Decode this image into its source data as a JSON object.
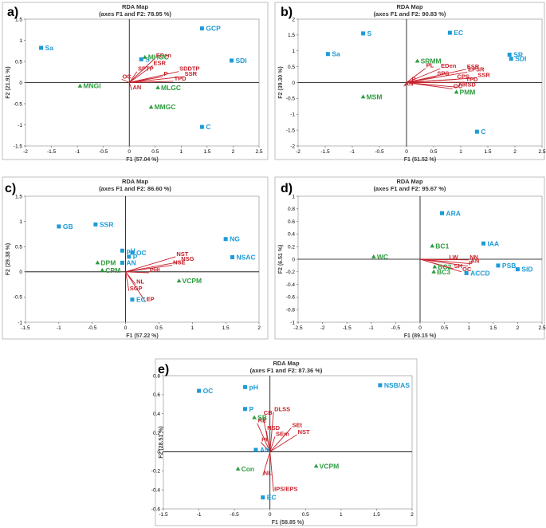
{
  "colors": {
    "site": "#1e9bd7",
    "treatment": "#2e9b3e",
    "variable": "#c8202a",
    "axis": "#000000",
    "frame": "#b0b0b0"
  },
  "chart_data": [
    {
      "panel": "a)",
      "type": "scatter",
      "title": "RDA Map",
      "subtitle": "(axes F1 and F2: 78.95 %)",
      "xlabel": "F1 (57.04 %)",
      "ylabel": "F2 (21.91 %)",
      "xlim": [
        -2,
        2.5
      ],
      "ylim": [
        -1.5,
        1.5
      ],
      "xticks": [
        -2,
        -1.5,
        -1,
        -0.5,
        0,
        0.5,
        1,
        1.5,
        2,
        2.5
      ],
      "yticks": [
        -1.5,
        -1,
        -0.5,
        0,
        0.5,
        1,
        1.5
      ],
      "sites": [
        {
          "label": "Sa",
          "x": -1.7,
          "y": 0.82
        },
        {
          "label": "GCP",
          "x": 1.4,
          "y": 1.28
        },
        {
          "label": "SDI",
          "x": 1.97,
          "y": 0.52
        },
        {
          "label": "C",
          "x": 1.4,
          "y": -1.05
        },
        {
          "label": "S",
          "x": 0.23,
          "y": 0.55
        }
      ],
      "treatments": [
        {
          "label": "MHGC",
          "x": 0.3,
          "y": 0.6
        },
        {
          "label": "MNGI",
          "x": -0.95,
          "y": -0.08
        },
        {
          "label": "MLGC",
          "x": 0.55,
          "y": -0.12
        },
        {
          "label": "MMGC",
          "x": 0.42,
          "y": -0.58
        }
      ],
      "vectors": [
        {
          "label": "EDen",
          "x": 0.5,
          "y": 0.58
        },
        {
          "label": "ESR",
          "x": 0.45,
          "y": 0.4
        },
        {
          "label": "SDDTP",
          "x": 0.95,
          "y": 0.26
        },
        {
          "label": "SPTP",
          "x": 0.15,
          "y": 0.26
        },
        {
          "label": "P",
          "x": 0.65,
          "y": 0.14
        },
        {
          "label": "SSR",
          "x": 1.05,
          "y": 0.14
        },
        {
          "label": "TPD",
          "x": 0.85,
          "y": 0.03
        },
        {
          "label": "OC",
          "x": -0.15,
          "y": 0.08
        },
        {
          "label": "AN",
          "x": 0.05,
          "y": -0.18
        }
      ]
    },
    {
      "panel": "b)",
      "type": "scatter",
      "title": "RDA Map",
      "subtitle": "(axes F1 and F2: 90.83 %)",
      "xlabel": "F1 (51.52 %)",
      "ylabel": "F2 (39.30 %)",
      "xlim": [
        -2,
        2.5
      ],
      "ylim": [
        -2,
        2
      ],
      "xticks": [
        -2,
        -1.5,
        -1,
        -0.5,
        0,
        0.5,
        1,
        1.5,
        2,
        2.5
      ],
      "yticks": [
        -2,
        -1.5,
        -1,
        -0.5,
        0,
        0.5,
        1,
        1.5,
        2
      ],
      "sites": [
        {
          "label": "S",
          "x": -0.8,
          "y": 1.55
        },
        {
          "label": "EC",
          "x": 0.8,
          "y": 1.57
        },
        {
          "label": "Sa",
          "x": -1.45,
          "y": 0.9
        },
        {
          "label": "SR",
          "x": 1.9,
          "y": 0.88
        },
        {
          "label": "SDI",
          "x": 1.93,
          "y": 0.75
        },
        {
          "label": "C",
          "x": 1.3,
          "y": -1.55
        }
      ],
      "treatments": [
        {
          "label": "SRMM",
          "x": 0.2,
          "y": 0.68
        },
        {
          "label": "MSM",
          "x": -0.8,
          "y": -0.45
        },
        {
          "label": "PMM",
          "x": 0.92,
          "y": -0.3
        }
      ],
      "vectors": [
        {
          "label": "PL",
          "x": 0.35,
          "y": 0.45
        },
        {
          "label": "EDen",
          "x": 0.62,
          "y": 0.44
        },
        {
          "label": "ESR",
          "x": 1.1,
          "y": 0.42
        },
        {
          "label": "SPS",
          "x": 0.55,
          "y": 0.2
        },
        {
          "label": "EPSR",
          "x": 1.12,
          "y": 0.33
        },
        {
          "label": "SSR",
          "x": 1.3,
          "y": 0.15
        },
        {
          "label": "CPS",
          "x": 0.92,
          "y": 0.1
        },
        {
          "label": "TPD",
          "x": 1.08,
          "y": 0.01
        },
        {
          "label": "P",
          "x": 0.08,
          "y": 0.02
        },
        {
          "label": "NRSD",
          "x": 0.95,
          "y": -0.15
        },
        {
          "label": "OC",
          "x": 0.85,
          "y": -0.2
        },
        {
          "label": "AN",
          "x": -0.05,
          "y": -0.12
        }
      ]
    },
    {
      "panel": "c)",
      "type": "scatter",
      "title": "RDA Map",
      "subtitle": "(axes F1 and F2: 86.60 %)",
      "xlabel": "F1 (57.22 %)",
      "ylabel": "F2 (29.38 %)",
      "xlim": [
        -1.5,
        2
      ],
      "ylim": [
        -1,
        1.5
      ],
      "xticks": [
        -1.5,
        -1,
        -0.5,
        0,
        0.5,
        1,
        1.5,
        2
      ],
      "yticks": [
        -1,
        -0.5,
        0,
        0.5,
        1,
        1.5
      ],
      "sites": [
        {
          "label": "GB",
          "x": -1.0,
          "y": 0.9
        },
        {
          "label": "SSR",
          "x": -0.45,
          "y": 0.94
        },
        {
          "label": "NG",
          "x": 1.5,
          "y": 0.65
        },
        {
          "label": "NSAC",
          "x": 1.6,
          "y": 0.29
        },
        {
          "label": "pH",
          "x": -0.05,
          "y": 0.42
        },
        {
          "label": "OC",
          "x": 0.1,
          "y": 0.38
        },
        {
          "label": "P",
          "x": 0.05,
          "y": 0.3
        },
        {
          "label": "AN",
          "x": -0.05,
          "y": 0.18
        },
        {
          "label": "EC",
          "x": 0.1,
          "y": -0.55
        }
      ],
      "treatments": [
        {
          "label": "DPM",
          "x": -0.42,
          "y": 0.18
        },
        {
          "label": "CPM",
          "x": -0.35,
          "y": 0.03
        },
        {
          "label": "VCPM",
          "x": 0.8,
          "y": -0.18
        }
      ],
      "vectors": [
        {
          "label": "NST",
          "x": 0.75,
          "y": 0.3
        },
        {
          "label": "NSG",
          "x": 0.82,
          "y": 0.2
        },
        {
          "label": "NSE",
          "x": 0.7,
          "y": 0.13
        },
        {
          "label": "PHt",
          "x": 0.35,
          "y": -0.02
        },
        {
          "label": "NL",
          "x": 0.15,
          "y": -0.25
        },
        {
          "label": "SGP",
          "x": 0.05,
          "y": -0.38
        },
        {
          "label": "EP",
          "x": 0.3,
          "y": -0.6
        }
      ]
    },
    {
      "panel": "d)",
      "type": "scatter",
      "title": "RDA Map",
      "subtitle": "(axes F1 and F2: 95.67 %)",
      "xlabel": "F1 (89.15 %)",
      "ylabel": "F2 (6.51 %)",
      "xlim": [
        -2.5,
        2.5
      ],
      "ylim": [
        -1,
        1
      ],
      "xticks": [
        -2.5,
        -2,
        -1.5,
        -1,
        -0.5,
        0,
        0.5,
        1,
        1.5,
        2,
        2.5
      ],
      "yticks": [
        -1,
        -0.8,
        -0.6,
        -0.4,
        -0.2,
        0,
        0.2,
        0.4,
        0.6,
        0.8,
        1
      ],
      "sites": [
        {
          "label": "ARA",
          "x": 0.45,
          "y": 0.73
        },
        {
          "label": "IAA",
          "x": 1.3,
          "y": 0.25
        },
        {
          "label": "PSB",
          "x": 1.6,
          "y": -0.1
        },
        {
          "label": "SID",
          "x": 2.0,
          "y": -0.16
        },
        {
          "label": "ACCD",
          "x": 0.95,
          "y": -0.22
        }
      ],
      "treatments": [
        {
          "label": "BC1",
          "x": 0.25,
          "y": 0.21
        },
        {
          "label": "WC",
          "x": -0.95,
          "y": 0.04
        },
        {
          "label": "BC2",
          "x": 0.3,
          "y": -0.12
        },
        {
          "label": "BC3",
          "x": 0.28,
          "y": -0.2
        }
      ],
      "vectors": [
        {
          "label": "LW",
          "x": 0.58,
          "y": -0.01
        },
        {
          "label": "NN",
          "x": 1.0,
          "y": -0.01
        },
        {
          "label": "AN",
          "x": 1.02,
          "y": -0.07
        },
        {
          "label": "P",
          "x": 0.98,
          "y": -0.11
        },
        {
          "label": "SH",
          "x": 0.68,
          "y": -0.15
        },
        {
          "label": "OC",
          "x": 0.85,
          "y": -0.2
        }
      ]
    },
    {
      "panel": "e)",
      "type": "scatter",
      "title": "RDA Map",
      "subtitle": "(axes F1 and F2: 87.36 %)",
      "xlabel": "F1 (58.85 %)",
      "ylabel": "F2 (28.51 %)",
      "xlim": [
        -1.5,
        2
      ],
      "ylim": [
        -0.6,
        0.8
      ],
      "xticks": [
        -1.5,
        -1,
        -0.5,
        0,
        0.5,
        1,
        1.5,
        2
      ],
      "yticks": [
        -0.6,
        -0.4,
        -0.2,
        0,
        0.2,
        0.4,
        0.6,
        0.8
      ],
      "sites": [
        {
          "label": "OC",
          "x": -1.0,
          "y": 0.64
        },
        {
          "label": "pH",
          "x": -0.35,
          "y": 0.68
        },
        {
          "label": "NSB/AS",
          "x": 1.55,
          "y": 0.7
        },
        {
          "label": "P",
          "x": -0.35,
          "y": 0.45
        },
        {
          "label": "AN",
          "x": -0.2,
          "y": 0.02
        },
        {
          "label": "EC",
          "x": -0.1,
          "y": -0.48
        }
      ],
      "treatments": [
        {
          "label": "SB",
          "x": -0.22,
          "y": 0.36
        },
        {
          "label": "Con",
          "x": -0.45,
          "y": -0.18
        },
        {
          "label": "VCPM",
          "x": 0.65,
          "y": -0.15
        }
      ],
      "vectors": [
        {
          "label": "DLSS",
          "x": 0.05,
          "y": 0.42
        },
        {
          "label": "CB",
          "x": -0.1,
          "y": 0.38
        },
        {
          "label": "RE",
          "x": -0.18,
          "y": 0.3
        },
        {
          "label": "NSD",
          "x": -0.05,
          "y": 0.22
        },
        {
          "label": "SEt",
          "x": 0.3,
          "y": 0.25
        },
        {
          "label": "NST",
          "x": 0.38,
          "y": 0.18
        },
        {
          "label": "SEm",
          "x": 0.07,
          "y": 0.16
        },
        {
          "label": "Ht",
          "x": -0.13,
          "y": 0.1
        },
        {
          "label": "NL",
          "x": -0.1,
          "y": -0.25
        },
        {
          "label": "IPS/EPS",
          "x": 0.05,
          "y": -0.42
        }
      ]
    }
  ]
}
